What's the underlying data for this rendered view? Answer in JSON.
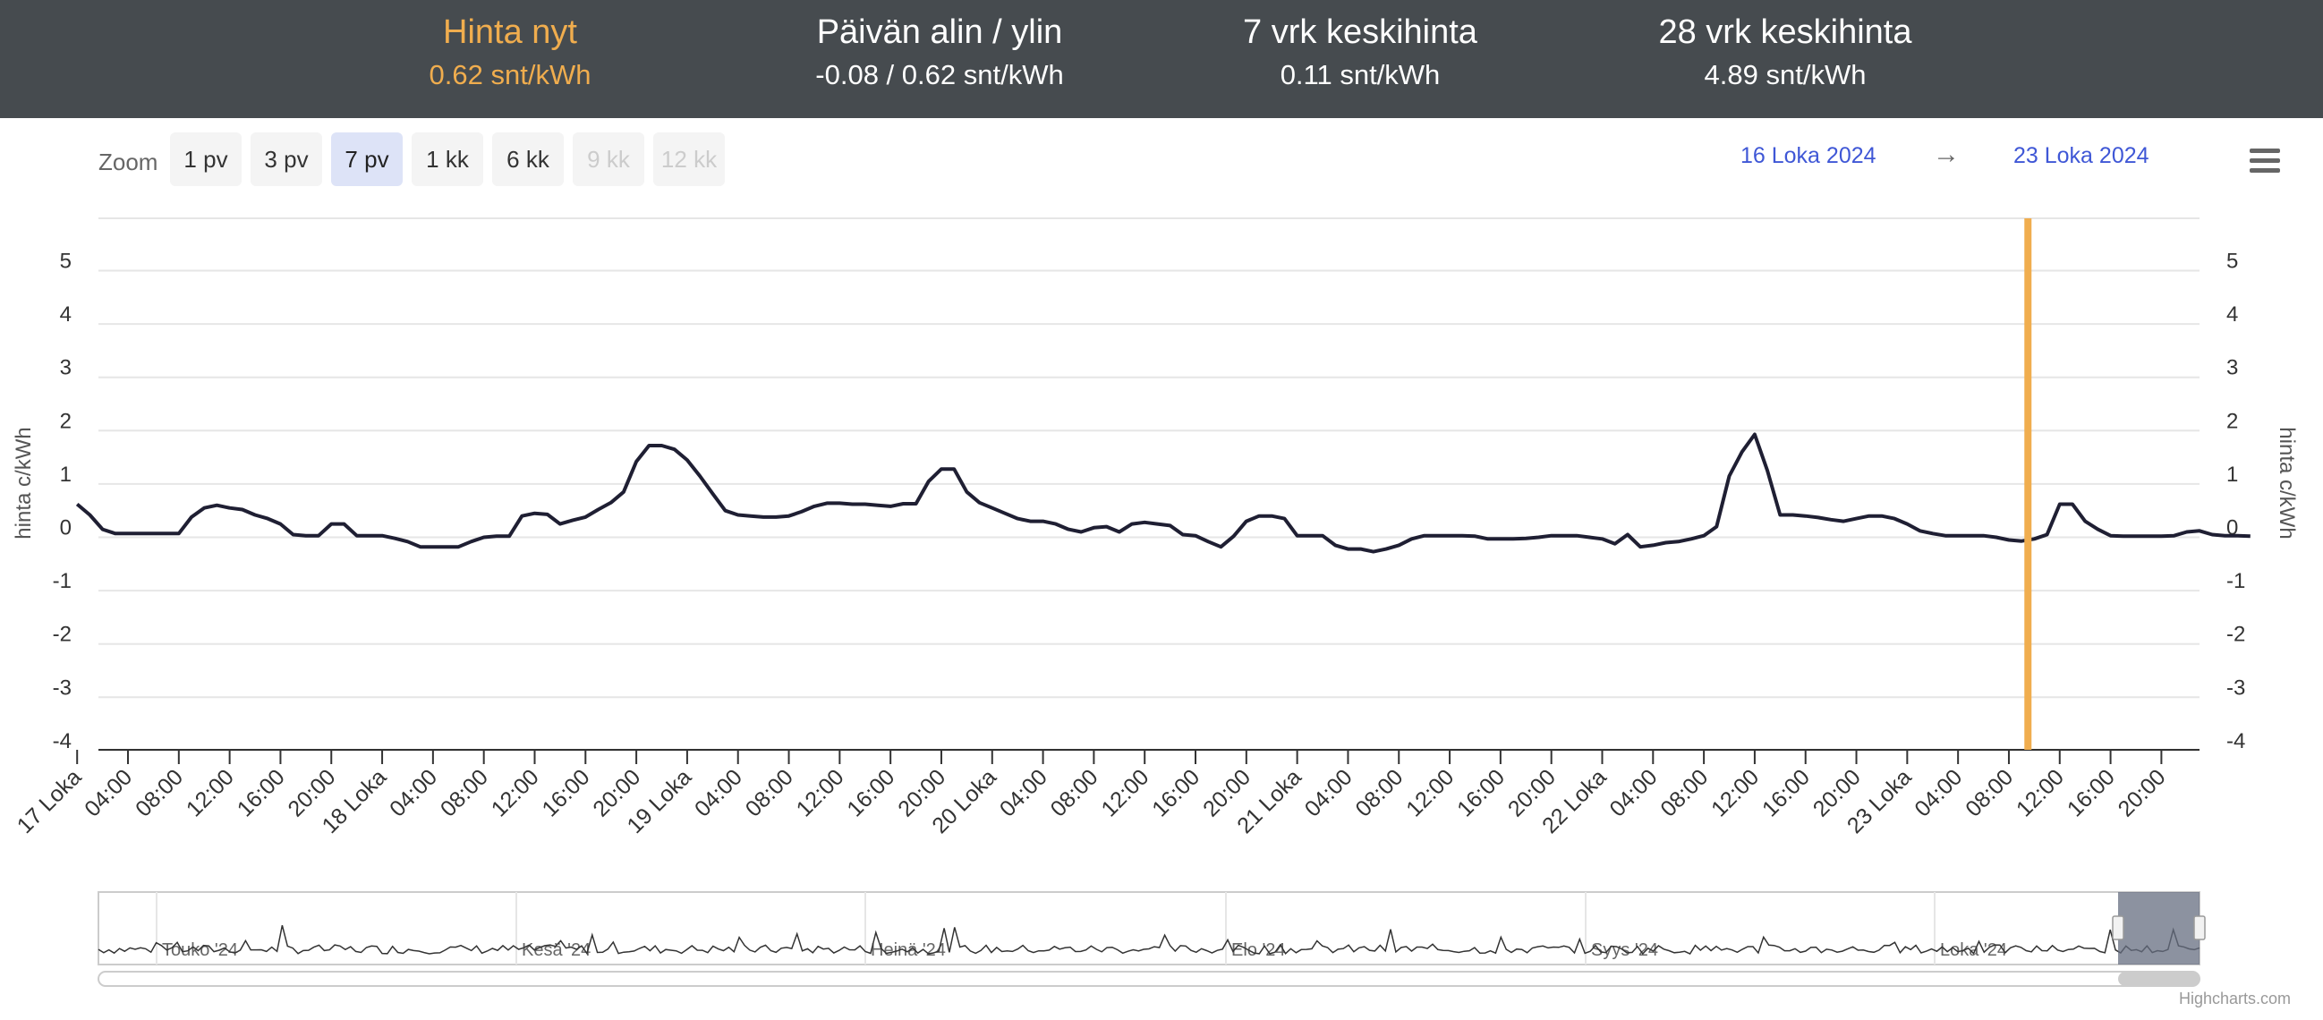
{
  "header": {
    "stats": [
      {
        "label": "Hinta nyt",
        "value": "0.62 snt/kWh",
        "highlight": true
      },
      {
        "label": "Päivän alin / ylin",
        "value": "-0.08 / 0.62 snt/kWh",
        "highlight": false
      },
      {
        "label": "7 vrk keskihinta",
        "value": "0.11 snt/kWh",
        "highlight": false
      },
      {
        "label": "28 vrk keskihinta",
        "value": "4.89 snt/kWh",
        "highlight": false
      }
    ],
    "highlight_color": "#f0ad4e",
    "background_color": "#464b4f"
  },
  "zoom": {
    "label": "Zoom",
    "buttons": [
      {
        "label": "1 pv",
        "state": "normal"
      },
      {
        "label": "3 pv",
        "state": "normal"
      },
      {
        "label": "7 pv",
        "state": "active"
      },
      {
        "label": "1 kk",
        "state": "normal"
      },
      {
        "label": "6 kk",
        "state": "normal"
      },
      {
        "label": "9 kk",
        "state": "disabled"
      },
      {
        "label": "12 kk",
        "state": "disabled"
      }
    ]
  },
  "range": {
    "from": "16 Loka 2024",
    "arrow": "→",
    "to": "23 Loka 2024"
  },
  "menu": {
    "icon": "hamburger-menu-icon"
  },
  "credits": "Highcharts.com",
  "chart_data": {
    "type": "line",
    "ylabel": "hinta c/kWh",
    "ylim": [
      -4,
      5
    ],
    "yticks": [
      5,
      4,
      3,
      2,
      1,
      0,
      -1,
      -2,
      -3,
      -4
    ],
    "xrange_hours": [
      -1,
      167
    ],
    "xticks": [
      "17 Loka",
      "04:00",
      "08:00",
      "12:00",
      "16:00",
      "20:00",
      "18 Loka",
      "04:00",
      "08:00",
      "12:00",
      "16:00",
      "20:00",
      "19 Loka",
      "04:00",
      "08:00",
      "12:00",
      "16:00",
      "20:00",
      "20 Loka",
      "04:00",
      "08:00",
      "12:00",
      "16:00",
      "20:00",
      "21 Loka",
      "04:00",
      "08:00",
      "12:00",
      "16:00",
      "20:00",
      "22 Loka",
      "04:00",
      "08:00",
      "12:00",
      "16:00",
      "20:00",
      "23 Loka",
      "04:00",
      "08:00",
      "12:00",
      "16:00",
      "20:00"
    ],
    "line_color": "#1f1f33",
    "current_marker": {
      "hour": 153.5,
      "color": "#f0ad4e"
    },
    "series": [
      {
        "values": [
          0.62,
          0.42,
          0.15,
          0.07,
          0.07,
          0.07,
          0.07,
          0.07,
          0.07,
          0.38,
          0.55,
          0.6,
          0.55,
          0.52,
          0.42,
          0.35,
          0.25,
          0.05,
          0.03,
          0.03,
          0.25,
          0.25,
          0.03,
          0.03,
          0.03,
          -0.02,
          -0.08,
          -0.18,
          -0.18,
          -0.18,
          -0.18,
          -0.08,
          0.0,
          0.02,
          0.02,
          0.4,
          0.45,
          0.43,
          0.25,
          0.32,
          0.38,
          0.52,
          0.65,
          0.85,
          1.42,
          1.72,
          1.72,
          1.65,
          1.45,
          1.15,
          0.82,
          0.5,
          0.42,
          0.4,
          0.38,
          0.38,
          0.4,
          0.48,
          0.58,
          0.64,
          0.64,
          0.62,
          0.62,
          0.6,
          0.58,
          0.63,
          0.63,
          1.05,
          1.28,
          1.28,
          0.85,
          0.65,
          0.55,
          0.45,
          0.35,
          0.3,
          0.3,
          0.25,
          0.15,
          0.1,
          0.18,
          0.2,
          0.1,
          0.25,
          0.28,
          0.25,
          0.22,
          0.05,
          0.03,
          -0.08,
          -0.18,
          0.02,
          0.3,
          0.4,
          0.4,
          0.35,
          0.03,
          0.03,
          0.03,
          -0.15,
          -0.22,
          -0.22,
          -0.27,
          -0.22,
          -0.15,
          -0.03,
          0.03,
          0.03,
          0.03,
          0.03,
          0.02,
          -0.03,
          -0.03,
          -0.03,
          -0.02,
          0.0,
          0.03,
          0.03,
          0.03,
          0.0,
          -0.03,
          -0.12,
          0.05,
          -0.18,
          -0.15,
          -0.1,
          -0.08,
          -0.03,
          0.03,
          0.2,
          1.15,
          1.6,
          1.93,
          1.25,
          0.42,
          0.42,
          0.4,
          0.37,
          0.33,
          0.3,
          0.35,
          0.4,
          0.4,
          0.35,
          0.25,
          0.12,
          0.07,
          0.03,
          0.03,
          0.03,
          0.03,
          0.0,
          -0.05,
          -0.07,
          -0.03,
          0.05,
          0.62,
          0.62,
          0.3,
          0.15,
          0.03,
          0.02,
          0.02,
          0.02,
          0.02,
          0.03,
          0.1,
          0.12,
          0.05,
          0.03,
          0.03,
          0.02
        ]
      }
    ]
  },
  "navigator": {
    "months": [
      "Touko '24",
      "Kesä '24",
      "Heinä '24",
      "Elo '24",
      "Syys '24",
      "Loka '24"
    ]
  }
}
